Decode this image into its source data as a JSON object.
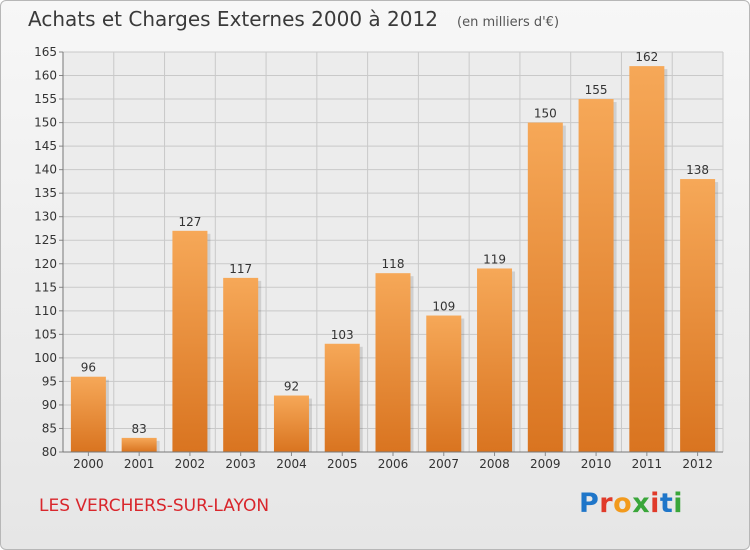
{
  "header": {
    "title": "Achats et Charges Externes 2000 à 2012",
    "unit": "(en milliers d'€)"
  },
  "footer": {
    "commune": "LES VERCHERS-SUR-LAYON",
    "logo": {
      "letters": [
        "P",
        "r",
        "o",
        "x",
        "i",
        "t",
        "i"
      ],
      "colors": [
        "#1f76c9",
        "#e03a2a",
        "#f29a1d",
        "#3aa63a",
        "#e03a2a",
        "#1f76c9",
        "#3aa63a"
      ]
    }
  },
  "colors": {
    "bar_top": "#f6a858",
    "bar_bottom": "#d97420",
    "grid": "#c9c9c9",
    "axis_text": "#333333",
    "commune": "#d9262c"
  },
  "chart_data": {
    "type": "bar",
    "categories": [
      "2000",
      "2001",
      "2002",
      "2003",
      "2004",
      "2005",
      "2006",
      "2007",
      "2008",
      "2009",
      "2010",
      "2011",
      "2012"
    ],
    "values": [
      96,
      83,
      127,
      117,
      92,
      103,
      118,
      109,
      119,
      150,
      155,
      162,
      138
    ],
    "ylim": [
      80,
      165
    ],
    "yticks": [
      80,
      85,
      90,
      95,
      100,
      105,
      110,
      115,
      120,
      125,
      130,
      135,
      140,
      145,
      150,
      155,
      160,
      165
    ],
    "grid": true,
    "title": "Achats et Charges Externes 2000 à 2012",
    "xlabel": "",
    "ylabel": ""
  }
}
